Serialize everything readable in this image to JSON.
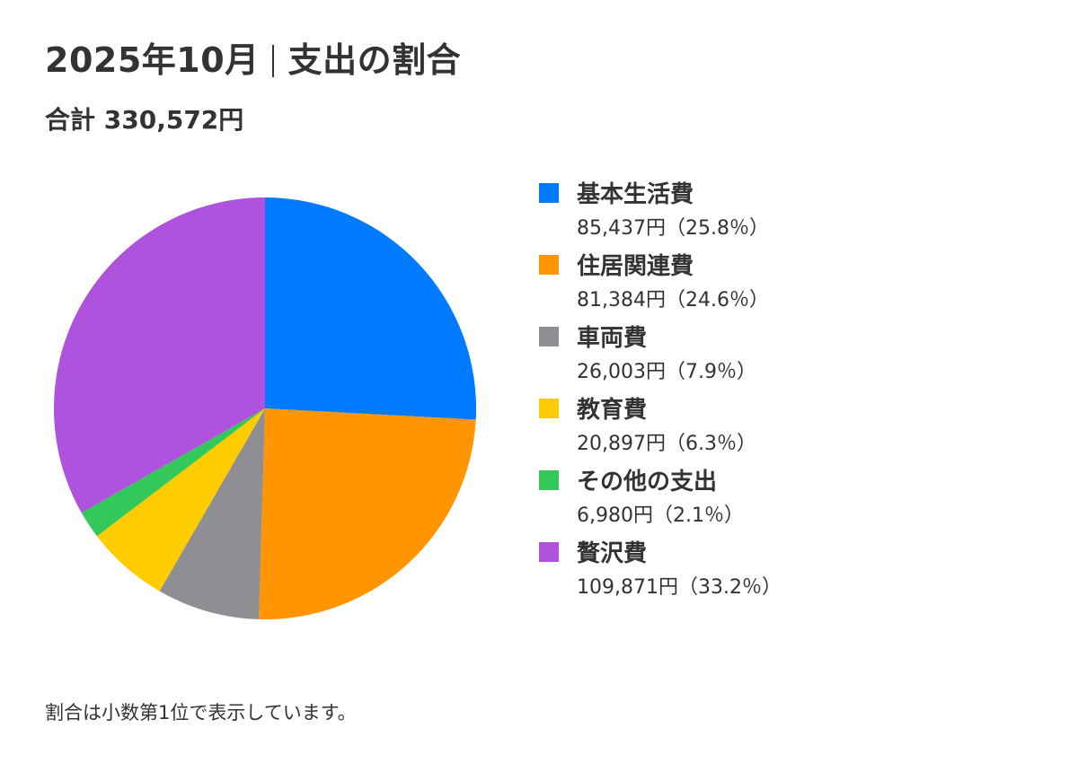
{
  "title": {
    "period": "2025年10月",
    "subject": "支出の割合"
  },
  "total_label": "合計 330,572円",
  "note": "割合は小数第1位で表示しています。",
  "chart_data": {
    "type": "pie",
    "title": "2025年10月 | 支出の割合",
    "total": 330572,
    "unit": "円",
    "start_angle": "12 o'clock",
    "direction": "clockwise",
    "legend_position": "right",
    "slices": [
      {
        "name": "基本生活費",
        "value": 85437,
        "percent": 25.8,
        "detail": "85,437円（25.8％）",
        "color": "#007AFF"
      },
      {
        "name": "住居関連費",
        "value": 81384,
        "percent": 24.6,
        "detail": "81,384円（24.6％）",
        "color": "#FF9500"
      },
      {
        "name": "車両費",
        "value": 26003,
        "percent": 7.9,
        "detail": "26,003円（7.9％）",
        "color": "#8E8E93"
      },
      {
        "name": "教育費",
        "value": 20897,
        "percent": 6.3,
        "detail": "20,897円（6.3％）",
        "color": "#FFCC00"
      },
      {
        "name": "その他の支出",
        "value": 6980,
        "percent": 2.1,
        "detail": "6,980円（2.1％）",
        "color": "#34C759"
      },
      {
        "name": "贅沢費",
        "value": 109871,
        "percent": 33.2,
        "detail": "109,871円（33.2％）",
        "color": "#AF52DE"
      }
    ]
  }
}
